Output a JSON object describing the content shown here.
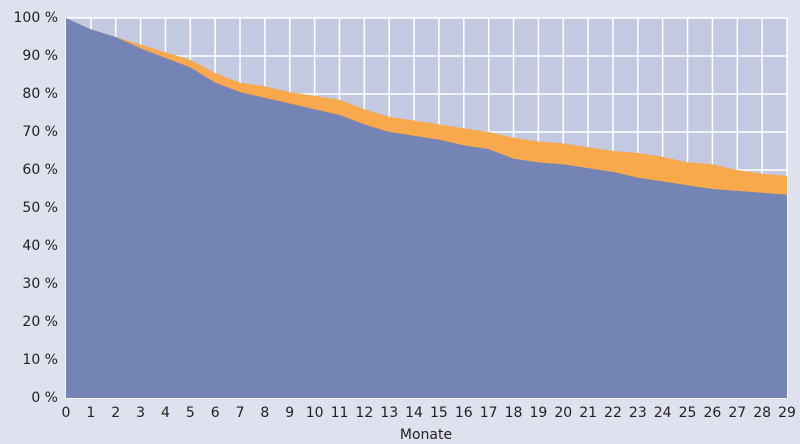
{
  "chart_data": {
    "type": "area",
    "x_label": "Monate",
    "x": [
      0,
      1,
      2,
      3,
      4,
      5,
      6,
      7,
      8,
      9,
      10,
      11,
      12,
      13,
      14,
      15,
      16,
      17,
      18,
      19,
      20,
      21,
      22,
      23,
      24,
      25,
      26,
      27,
      28,
      29
    ],
    "series": [
      {
        "color": "#f8a94c",
        "values": [
          100,
          97,
          95,
          93,
          91,
          89,
          85.5,
          83,
          82,
          80.5,
          79.5,
          78.5,
          76,
          74,
          73,
          72,
          71,
          70,
          68.5,
          67.5,
          67,
          66,
          65,
          64.5,
          63.5,
          62,
          61.5,
          60,
          59,
          58.5
        ]
      },
      {
        "color": "#7485b5",
        "values": [
          100,
          97,
          95,
          92,
          89.5,
          87,
          83,
          80.5,
          79,
          77.5,
          76,
          74.5,
          72,
          70,
          69,
          68,
          66.5,
          65.5,
          63,
          62,
          61.5,
          60.5,
          59.5,
          58,
          57,
          56,
          55,
          54.5,
          54,
          53.5
        ]
      }
    ],
    "xlim": [
      0,
      29
    ],
    "xticks": [
      0,
      1,
      2,
      3,
      4,
      5,
      6,
      7,
      8,
      9,
      10,
      11,
      12,
      13,
      14,
      15,
      16,
      17,
      18,
      19,
      20,
      21,
      22,
      23,
      24,
      25,
      26,
      27,
      28,
      29
    ],
    "ylim": [
      0,
      100
    ],
    "yticks": [
      {
        "value": 0,
        "label": "0 %"
      },
      {
        "value": 10,
        "label": "10 %"
      },
      {
        "value": 20,
        "label": "20 %"
      },
      {
        "value": 30,
        "label": "30 %"
      },
      {
        "value": 40,
        "label": "40 %"
      },
      {
        "value": 50,
        "label": "50 %"
      },
      {
        "value": 60,
        "label": "60 %"
      },
      {
        "value": 70,
        "label": "70 %"
      },
      {
        "value": 80,
        "label": "80 %"
      },
      {
        "value": 90,
        "label": "90 %"
      },
      {
        "value": 100,
        "label": "100 %"
      }
    ],
    "grid": true,
    "plot_background": "#c4c9e2"
  }
}
